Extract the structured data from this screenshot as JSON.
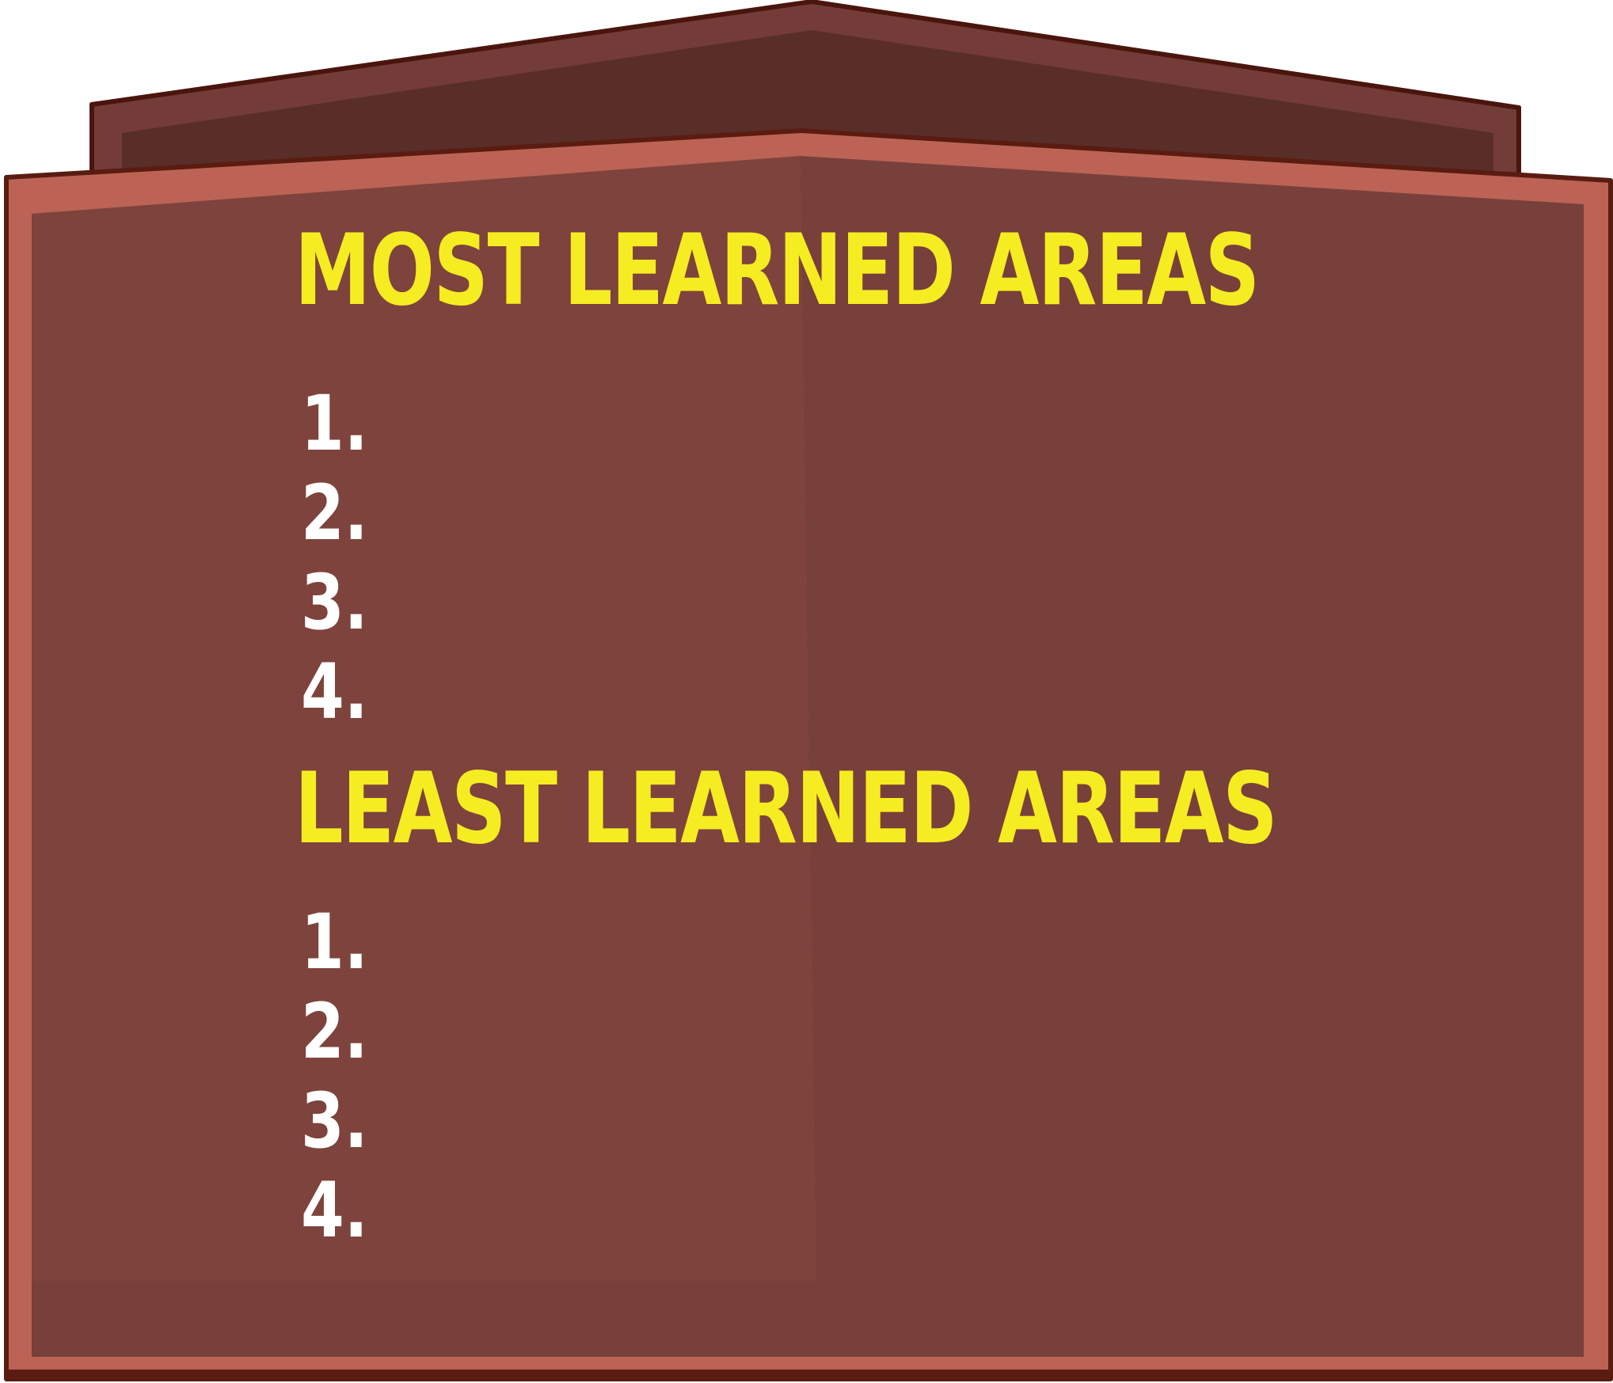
{
  "colors": {
    "board_face_left": "#7d433c",
    "board_face_right": "#78403a",
    "board_rim": "#bc6356",
    "board_outline": "#5a1c11",
    "back_panel_rim": "#743c38",
    "back_panel_face": "#5a2e28",
    "heading_text": "#f6ec22",
    "number_text": "#ffffff"
  },
  "sections": [
    {
      "heading": "MOST LEARNED AREAS",
      "items": [
        "1.",
        "2.",
        "3.",
        "4."
      ]
    },
    {
      "heading": "LEAST LEARNED AREAS",
      "items": [
        "1.",
        "2.",
        "3.",
        "4."
      ]
    }
  ]
}
